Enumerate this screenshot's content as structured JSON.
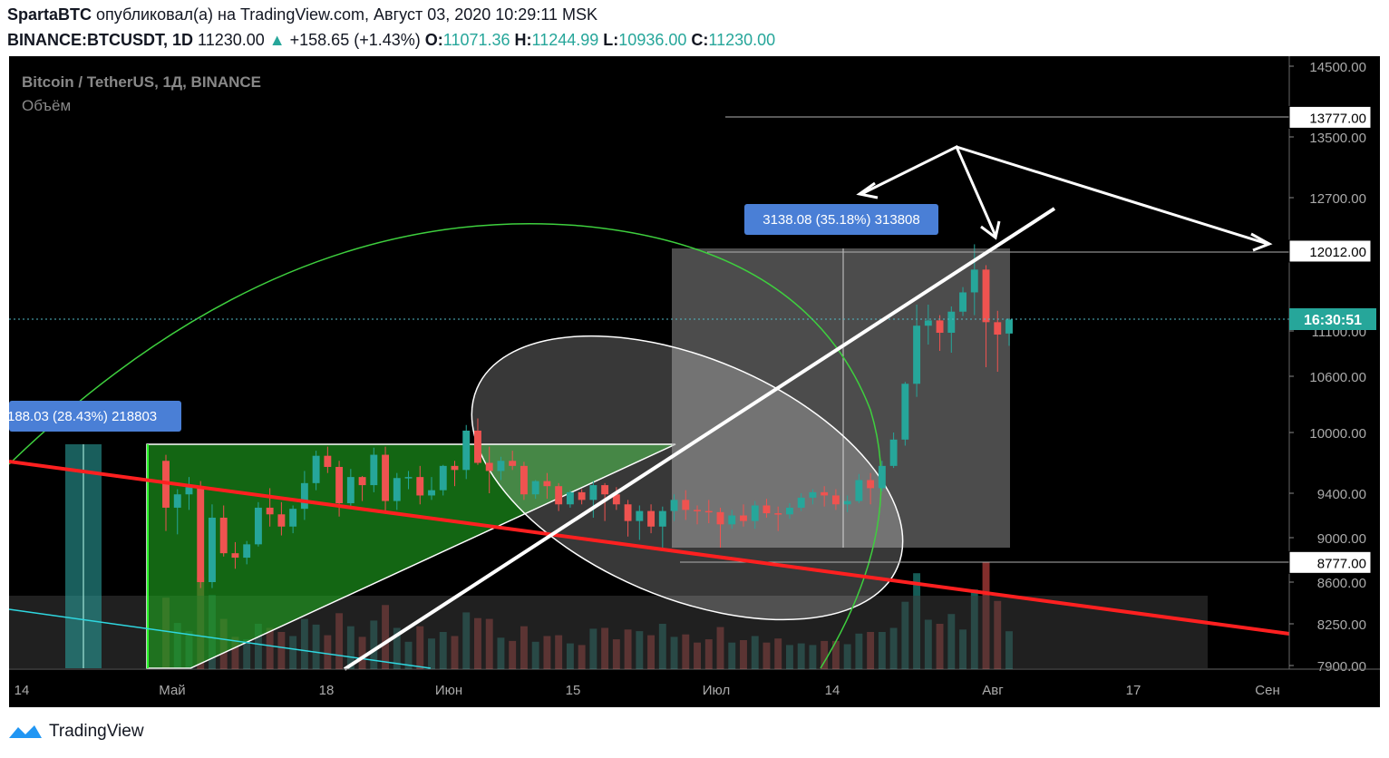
{
  "header": {
    "author": "SpartaBTC",
    "published_text": "опубликовал(а) на TradingView.com, Август 03, 2020 10:29:11 MSK",
    "symbol": "BINANCE:BTCUSDT, 1D",
    "last": "11230.00",
    "change": "+158.65 (+1.43%)",
    "o_label": "O:",
    "o_value": "11071.36",
    "h_label": "H:",
    "h_value": "11244.99",
    "l_label": "L:",
    "l_value": "10936.00",
    "c_label": "C:",
    "c_value": "11230.00"
  },
  "chart_title": "Bitcoin / TetherUS, 1Д, BINANCE",
  "volume_label": "Объём",
  "brand": "TradingView",
  "colors": {
    "up": "#26a69a",
    "down": "#ef5350",
    "accent": "#2962ff",
    "frame": "#000000"
  },
  "chart_data": {
    "type": "candlestick",
    "title": "Bitcoin / TetherUS, 1Д, BINANCE",
    "y_ticks": [
      14500,
      13500,
      12700,
      12000,
      11100,
      10600,
      10000,
      9400,
      9000,
      8600,
      8250,
      7900
    ],
    "y_tick_labels": [
      "14500.00",
      "13500.00",
      "12700.00",
      "12000.00",
      "11100.00",
      "10600.00",
      "10000.00",
      "9400.00",
      "9000.00",
      "8600.00",
      "8250.00",
      "7900.00"
    ],
    "x_tick_labels": [
      "14",
      "Май",
      "18",
      "Июн",
      "15",
      "Июл",
      "14",
      "Авг",
      "17",
      "Сен"
    ],
    "price_labels": [
      {
        "text": "13777.00",
        "value": 13777
      },
      {
        "text": "12012.00",
        "value": 12012
      },
      {
        "text": "8777.00",
        "value": 8777
      }
    ],
    "countdown_label": "16:30:51",
    "range_box_labels": [
      "3138.08 (35.18%) 313808",
      "188.03 (28.43%) 218803"
    ],
    "candles_ohlc": [
      [
        9720,
        9780,
        9060,
        9270
      ],
      [
        9270,
        9440,
        9030,
        9390
      ],
      [
        9390,
        9560,
        9250,
        9460
      ],
      [
        9460,
        9520,
        8550,
        8600
      ],
      [
        8600,
        9300,
        8550,
        9180
      ],
      [
        9180,
        9290,
        8830,
        8860
      ],
      [
        8860,
        8960,
        8720,
        8820
      ],
      [
        8820,
        8970,
        8760,
        8940
      ],
      [
        8940,
        9320,
        8920,
        9270
      ],
      [
        9270,
        9450,
        9100,
        9210
      ],
      [
        9210,
        9320,
        9020,
        9100
      ],
      [
        9100,
        9290,
        9040,
        9260
      ],
      [
        9260,
        9620,
        9160,
        9500
      ],
      [
        9500,
        9820,
        9430,
        9770
      ],
      [
        9770,
        9860,
        9600,
        9660
      ],
      [
        9660,
        9720,
        9190,
        9310
      ],
      [
        9310,
        9640,
        9270,
        9560
      ],
      [
        9560,
        9570,
        9330,
        9480
      ],
      [
        9480,
        9850,
        9410,
        9780
      ],
      [
        9780,
        9860,
        9230,
        9330
      ],
      [
        9330,
        9600,
        9250,
        9550
      ],
      [
        9550,
        9620,
        9440,
        9560
      ],
      [
        9560,
        9670,
        9300,
        9380
      ],
      [
        9380,
        9560,
        9340,
        9430
      ],
      [
        9430,
        9680,
        9380,
        9670
      ],
      [
        9670,
        9720,
        9470,
        9630
      ],
      [
        9630,
        10080,
        9540,
        10020
      ],
      [
        10020,
        10150,
        9680,
        9700
      ],
      [
        9700,
        9860,
        9400,
        9620
      ],
      [
        9620,
        9760,
        9530,
        9720
      ],
      [
        9720,
        9820,
        9630,
        9670
      ],
      [
        9670,
        9710,
        9340,
        9390
      ],
      [
        9390,
        9530,
        9350,
        9520
      ],
      [
        9520,
        9600,
        9350,
        9470
      ],
      [
        9470,
        9500,
        9240,
        9300
      ],
      [
        9300,
        9430,
        9270,
        9410
      ],
      [
        9410,
        9440,
        9300,
        9340
      ],
      [
        9340,
        9520,
        9180,
        9480
      ],
      [
        9480,
        9500,
        9150,
        9390
      ],
      [
        9390,
        9460,
        9250,
        9300
      ],
      [
        9300,
        9340,
        9010,
        9150
      ],
      [
        9150,
        9290,
        8980,
        9240
      ],
      [
        9240,
        9300,
        9040,
        9100
      ],
      [
        9100,
        9280,
        8880,
        9240
      ],
      [
        9240,
        9390,
        9150,
        9340
      ],
      [
        9340,
        9430,
        9160,
        9250
      ],
      [
        9250,
        9290,
        9120,
        9240
      ],
      [
        9240,
        9340,
        9130,
        9230
      ],
      [
        9230,
        9270,
        8910,
        9120
      ],
      [
        9120,
        9250,
        9080,
        9200
      ],
      [
        9200,
        9300,
        9100,
        9150
      ],
      [
        9150,
        9330,
        9080,
        9290
      ],
      [
        9290,
        9350,
        9180,
        9220
      ],
      [
        9220,
        9280,
        9060,
        9210
      ],
      [
        9210,
        9310,
        9170,
        9270
      ],
      [
        9270,
        9400,
        9240,
        9360
      ],
      [
        9360,
        9440,
        9300,
        9410
      ],
      [
        9410,
        9470,
        9280,
        9380
      ],
      [
        9380,
        9440,
        9250,
        9300
      ],
      [
        9300,
        9380,
        9230,
        9330
      ],
      [
        9330,
        9590,
        9310,
        9530
      ],
      [
        9530,
        9600,
        9300,
        9450
      ],
      [
        9450,
        9720,
        9420,
        9670
      ],
      [
        9670,
        10000,
        9650,
        9930
      ],
      [
        9930,
        10540,
        9870,
        10520
      ],
      [
        10520,
        11400,
        10380,
        11160
      ],
      [
        11160,
        11400,
        10950,
        11220
      ],
      [
        11220,
        11280,
        10880,
        11080
      ],
      [
        11080,
        11380,
        10860,
        11320
      ],
      [
        11320,
        11600,
        11270,
        11540
      ],
      [
        11540,
        12100,
        11280,
        11800
      ],
      [
        11800,
        11850,
        10700,
        11200
      ],
      [
        11200,
        11330,
        10650,
        11060
      ],
      [
        11071.36,
        11244.99,
        10936,
        11230
      ]
    ]
  }
}
